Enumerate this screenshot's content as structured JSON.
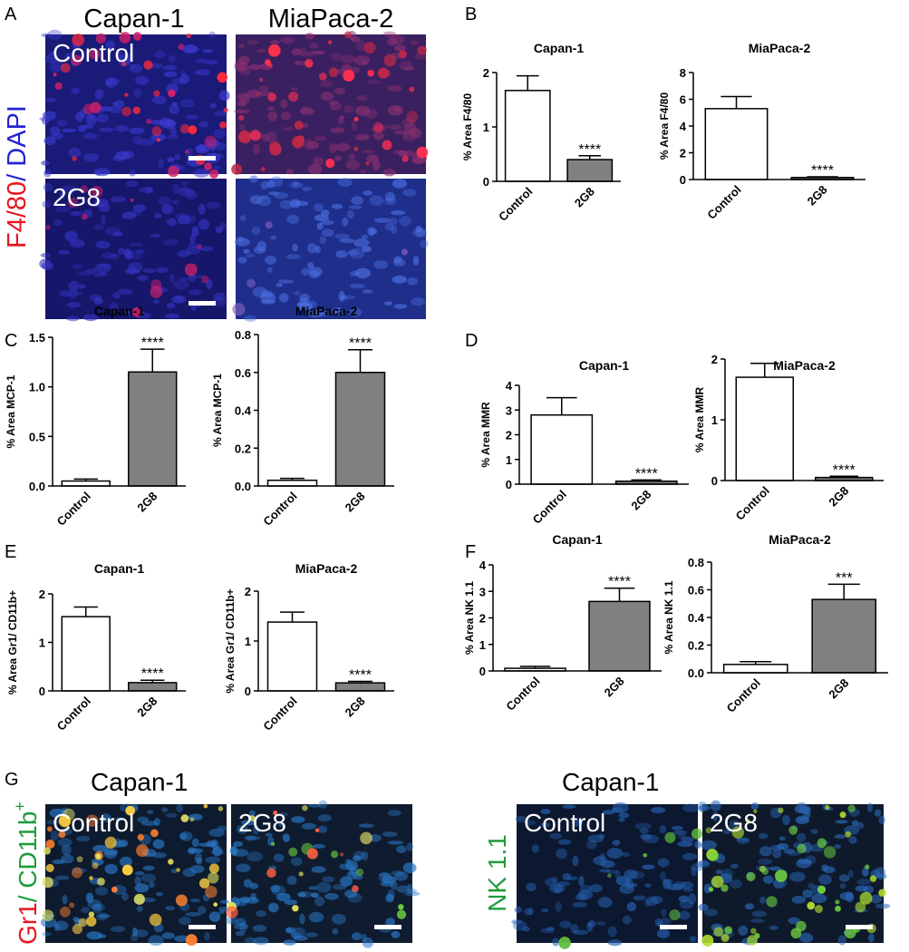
{
  "figure": {
    "letters": [
      "A",
      "B",
      "C",
      "D",
      "E",
      "F",
      "G"
    ],
    "panel_a": {
      "columns": [
        "Capan-1",
        "MiaPaca-2"
      ],
      "rows": [
        "Control",
        "2G8"
      ],
      "stain": [
        "F4/80",
        "/ DAPI"
      ]
    },
    "panel_g_left": {
      "title": "Capan-1",
      "labels": [
        "Control",
        "2G8"
      ],
      "stain": [
        "Gr1",
        "/ CD11b",
        "+"
      ]
    },
    "panel_g_right": {
      "title": "Capan-1",
      "labels": [
        "Control",
        "2G8"
      ],
      "stain": "NK 1.1"
    }
  },
  "chart_data": [
    {
      "type": "bar",
      "title": "Capan-1",
      "y_label": "% Area  F4/80",
      "categories": [
        "Control",
        "2G8"
      ],
      "values": [
        1.67,
        0.4
      ],
      "errors": [
        0.27,
        0.07
      ],
      "annotations": [
        null,
        "****"
      ],
      "colors": [
        "#ffffff",
        "#808080"
      ],
      "ylim": [
        0,
        2
      ],
      "yticks": [
        0,
        1,
        2
      ]
    },
    {
      "type": "bar",
      "title": "MiaPaca-2",
      "y_label": "% Area  F4/80",
      "categories": [
        "Control",
        "2G8"
      ],
      "values": [
        5.3,
        0.15
      ],
      "errors": [
        0.9,
        0.05
      ],
      "annotations": [
        null,
        "****"
      ],
      "colors": [
        "#ffffff",
        "#808080"
      ],
      "ylim": [
        0,
        8
      ],
      "yticks": [
        0,
        2,
        4,
        6,
        8
      ]
    },
    {
      "type": "bar",
      "title": "Capan-1",
      "y_label": "% Area  MCP-1",
      "categories": [
        "Control",
        "2G8"
      ],
      "values": [
        0.05,
        1.15
      ],
      "errors": [
        0.02,
        0.23
      ],
      "annotations": [
        null,
        "****"
      ],
      "colors": [
        "#ffffff",
        "#808080"
      ],
      "ylim": [
        0,
        1.5
      ],
      "yticks": [
        {
          "value": 0,
          "label": "0.0"
        },
        0.5,
        {
          "value": 1,
          "label": "1.0"
        },
        1.5
      ]
    },
    {
      "type": "bar",
      "title": "MiaPaca-2",
      "y_label": "%  Area  MCP-1",
      "categories": [
        "Control",
        "2G8"
      ],
      "values": [
        0.03,
        0.6
      ],
      "errors": [
        0.01,
        0.12
      ],
      "annotations": [
        null,
        "****"
      ],
      "colors": [
        "#ffffff",
        "#808080"
      ],
      "ylim": [
        0,
        0.8
      ],
      "yticks": [
        {
          "value": 0,
          "label": "0.0"
        },
        0.2,
        0.4,
        0.6,
        0.8
      ]
    },
    {
      "type": "bar",
      "title": "Capan-1",
      "y_label": "% Area  MMR",
      "categories": [
        "Control",
        "2G8"
      ],
      "values": [
        2.8,
        0.12
      ],
      "errors": [
        0.7,
        0.05
      ],
      "annotations": [
        null,
        "****"
      ],
      "colors": [
        "#ffffff",
        "#808080"
      ],
      "ylim": [
        0,
        4
      ],
      "yticks": [
        0,
        1,
        2,
        3,
        4
      ]
    },
    {
      "type": "bar",
      "title": "MiaPaca-2",
      "y_label": "% Area  MMR",
      "categories": [
        "Control",
        "2G8"
      ],
      "values": [
        1.7,
        0.05
      ],
      "errors": [
        0.23,
        0.02
      ],
      "annotations": [
        null,
        "****"
      ],
      "colors": [
        "#ffffff",
        "#808080"
      ],
      "ylim": [
        0,
        2
      ],
      "yticks": [
        0,
        1,
        2
      ]
    },
    {
      "type": "bar",
      "title": "Capan-1",
      "y_label": "% Area Gr1/ CD11b+",
      "categories": [
        "Control",
        "2G8"
      ],
      "values": [
        1.53,
        0.17
      ],
      "errors": [
        0.2,
        0.05
      ],
      "annotations": [
        null,
        "****"
      ],
      "colors": [
        "#ffffff",
        "#808080"
      ],
      "ylim": [
        0,
        2
      ],
      "yticks": [
        0,
        1,
        2
      ]
    },
    {
      "type": "bar",
      "title": "MiaPaca-2",
      "y_label": "% Area Gr1/ CD11b+",
      "categories": [
        "Control",
        "2G8"
      ],
      "values": [
        1.38,
        0.16
      ],
      "errors": [
        0.2,
        0.03
      ],
      "annotations": [
        null,
        "****"
      ],
      "colors": [
        "#ffffff",
        "#808080"
      ],
      "ylim": [
        0,
        2
      ],
      "yticks": [
        0,
        1,
        2
      ]
    },
    {
      "type": "bar",
      "title": "Capan-1",
      "y_label": "% Area  NK 1.1",
      "categories": [
        "Control",
        "2G8"
      ],
      "values": [
        0.1,
        2.62
      ],
      "errors": [
        0.07,
        0.5
      ],
      "annotations": [
        null,
        "****"
      ],
      "colors": [
        "#ffffff",
        "#808080"
      ],
      "ylim": [
        0,
        4
      ],
      "yticks": [
        0,
        1,
        2,
        3,
        4
      ]
    },
    {
      "type": "bar",
      "title": "MiaPaca-2",
      "y_label": "% Area  NK 1.1",
      "categories": [
        "Control",
        "2G8"
      ],
      "values": [
        0.06,
        0.53
      ],
      "errors": [
        0.02,
        0.11
      ],
      "annotations": [
        null,
        "***"
      ],
      "colors": [
        "#ffffff",
        "#808080"
      ],
      "ylim": [
        0,
        0.8
      ],
      "yticks": [
        {
          "value": 0,
          "label": "0.0"
        },
        0.2,
        0.4,
        0.6,
        0.8
      ]
    }
  ]
}
